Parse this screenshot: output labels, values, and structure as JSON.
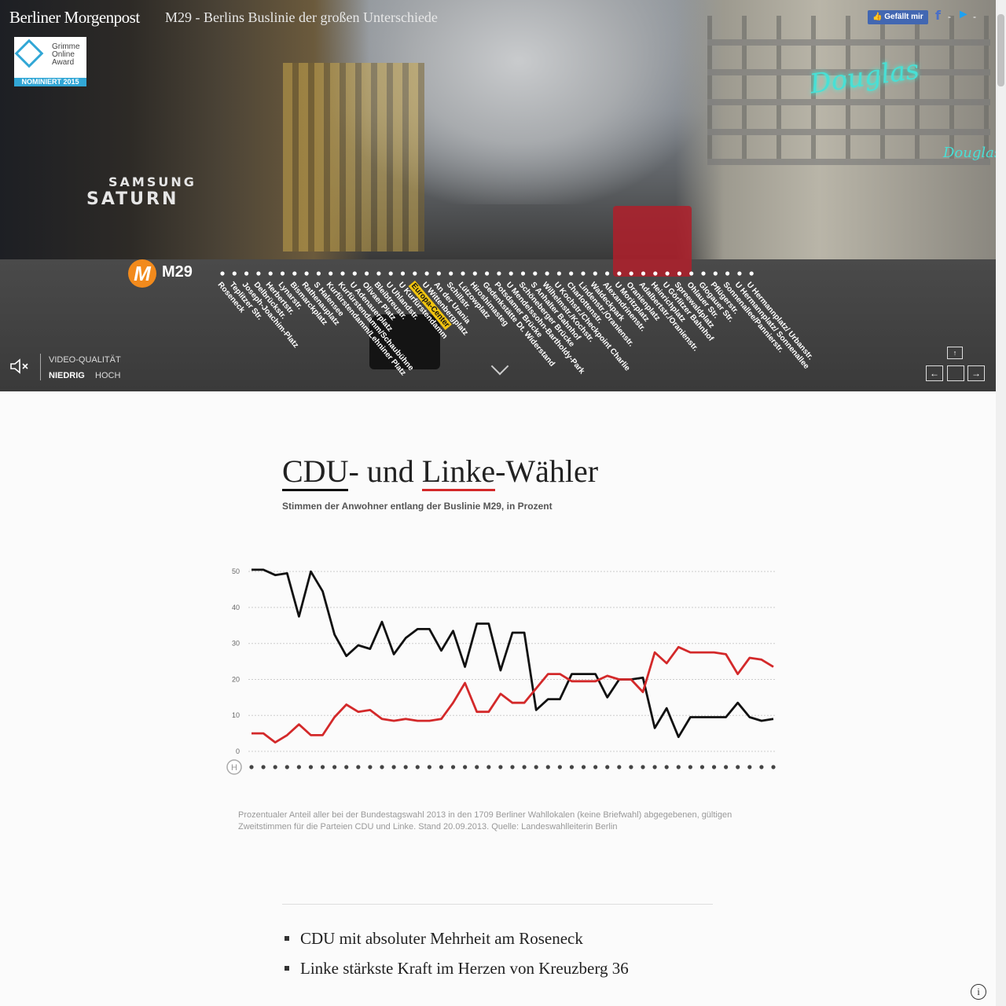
{
  "header": {
    "brand": "Berliner Morgenpost",
    "headline": "M29 - Berlins Buslinie der großen Unterschiede",
    "award_lines": [
      "Grimme",
      "Online",
      "Award"
    ],
    "award_badge": "NOMINIERT 2015",
    "like_label": "Gefällt mir",
    "social_sep": "-"
  },
  "hero": {
    "scene_text_1": "SAMSUNG",
    "scene_text_2": "SATURN",
    "scene_text_3": "Douglas",
    "scene_text_4": "Douglas",
    "line_badge": "M",
    "line_name": "M29",
    "active_stop_index": 16,
    "stops": [
      "Roseneck",
      "Teplitzer Str.",
      "Joseph-Joachim-Platz",
      "Delbrückstr.",
      "Herbertstr.",
      "Lynarstr.",
      "Bismarckplatz",
      "Rathenauplatz",
      "S Halensee",
      "Kurfürstendamm/Lehniner Platz",
      "Kurfürstendamm/Schaubühne",
      "U Adenauerplatz",
      "Olivaer Platz",
      "Bleibtreustr.",
      "U Uhlandstr.",
      "U Kurfürstendamm",
      "Europa-Center",
      "U Wittenbergplatz",
      "An der Urania",
      "Schillstr.",
      "Lützowplatz",
      "Hiroshimasteg",
      "Gedenkstätte Dt. Widerstand",
      "Potsdamer Brücke",
      "U Mendelssohn-Bartholdy-Park",
      "Schöneberger Brücke",
      "S Anhalter Bahnhof",
      "Wilhelmstr./Kochstr.",
      "U Kochstr./Checkpoint Charlie",
      "Charlottenstr.",
      "Lindenstr./Oranienstr.",
      "Waldeckpark",
      "Alexandrinenstr.",
      "U Moritzplatz",
      "Oranienplatz",
      "Adalbertstr./Oranienstr.",
      "Heinrichplatz",
      "U Görlitzer Bahnhof",
      "Spreewaldplatz",
      "Ohlauer Str.",
      "Glogauer Str.",
      "Pflügerstr.",
      "Sonnenallee/Pannierstr.",
      "U Hermannplatz/ Sonnenallee",
      "U Hermannplatz/ Urbanstr."
    ],
    "video_quality_label": "VIDEO-QUALITÄT",
    "quality_low": "NIEDRIG",
    "quality_high": "HOCH",
    "quality_selected": "NIEDRIG",
    "nav": {
      "up": "↑",
      "left": "←",
      "right": "→"
    }
  },
  "article": {
    "title_cdu": "CDU",
    "title_mid": "- und ",
    "title_linke": "Linke",
    "title_end": "-Wähler",
    "subtitle": "Stimmen der Anwohner entlang der Buslinie M29, in Prozent",
    "footnote": "Prozentualer Anteil aller bei der Bundestagswahl 2013 in den 1709 Berliner Wahllokalen (keine Briefwahl) abgegebenen, gültigen Zweitstimmen für die Parteien CDU und Linke. Stand 20.09.2013. Quelle: Landeswahlleiterin Berlin",
    "bullets": [
      "CDU mit absoluter Mehrheit am Roseneck",
      "Linke stärkste Kraft im Herzen von Kreuzberg 36"
    ],
    "info_icon": "i"
  },
  "colors": {
    "cdu": "#111111",
    "linke": "#d3292a",
    "accent_stop": "#f1c40f",
    "badge_orange": "#f28a1c"
  },
  "chart_data": {
    "type": "line",
    "title": "CDU- und Linke-Wähler",
    "subtitle": "Stimmen der Anwohner entlang der Buslinie M29, in Prozent",
    "start_marker": "H",
    "yticks": [
      0,
      10,
      20,
      30,
      40,
      50
    ],
    "ylim": [
      0,
      52
    ],
    "grid": true,
    "series": [
      {
        "name": "CDU",
        "color": "#111111",
        "values": [
          50.5,
          50.5,
          49,
          49.5,
          37.5,
          50,
          44.5,
          32.5,
          26.5,
          29.5,
          28.5,
          36,
          27,
          31.5,
          34,
          34,
          28,
          33.5,
          23.5,
          35.5,
          35.5,
          22.5,
          33,
          33,
          11.5,
          14.5,
          14.5,
          21.5,
          21.5,
          21.5,
          15,
          20,
          20,
          20.5,
          6.5,
          12,
          4,
          9.5,
          9.5,
          9.5,
          9.5,
          13.5,
          9.5,
          8.5,
          9
        ]
      },
      {
        "name": "Linke",
        "color": "#d3292a",
        "values": [
          5,
          5,
          2.5,
          4.5,
          7.5,
          4.5,
          4.5,
          9.5,
          13,
          11,
          11.5,
          9,
          8.5,
          9,
          8.5,
          8.5,
          9,
          13.5,
          19,
          11,
          11,
          16,
          13.5,
          13.5,
          17.5,
          21.5,
          21.5,
          19.5,
          19.5,
          19.5,
          21,
          20,
          20,
          16.5,
          27.5,
          24.5,
          29,
          27.5,
          27.5,
          27.5,
          27,
          21.5,
          26,
          25.5,
          23.5
        ]
      }
    ]
  }
}
